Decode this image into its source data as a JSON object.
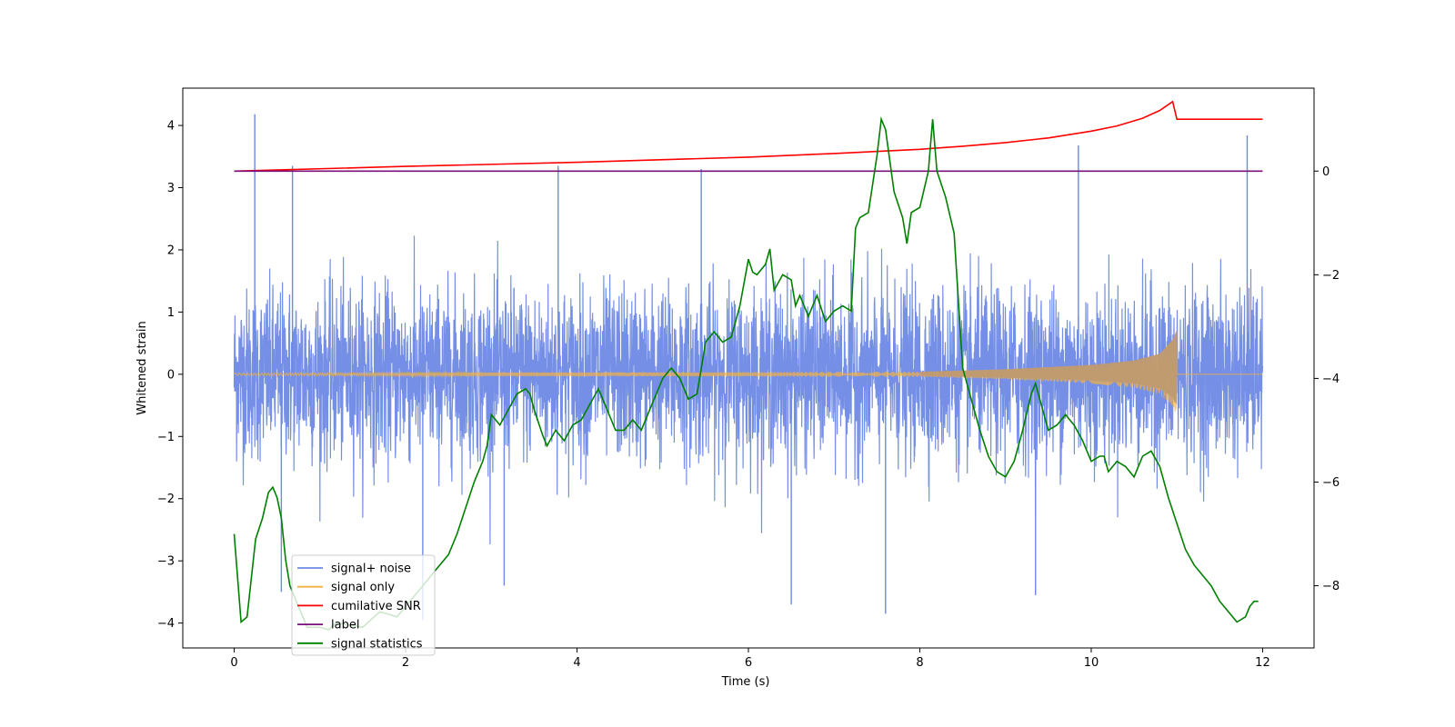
{
  "chart_data": {
    "type": "line",
    "title": "",
    "xlabel": "Time (s)",
    "ylabel": "Whitened strain",
    "y2label": "",
    "xlim": [
      -0.6,
      12.6
    ],
    "ylim": [
      -4.4,
      4.6
    ],
    "y2lim": [
      -9.2,
      1.6
    ],
    "xticks": [
      0,
      2,
      4,
      6,
      8,
      10,
      12
    ],
    "yticks": [
      -4,
      -3,
      -2,
      -1,
      0,
      1,
      2,
      3,
      4
    ],
    "y2ticks": [
      -8,
      -6,
      -4,
      -2,
      0
    ],
    "grid": false,
    "legend_position": "lower-left",
    "series": [
      {
        "name": "signal+ noise",
        "axis": "left",
        "color": "#6d89e4",
        "style": "noise",
        "x_range": [
          0,
          12
        ],
        "envelope_typical": [
          -1.6,
          1.6
        ],
        "spikes": [
          {
            "x": 0.24,
            "y": 4.18
          },
          {
            "x": 0.68,
            "y": 3.35
          },
          {
            "x": 3.78,
            "y": 3.35
          },
          {
            "x": 5.45,
            "y": 3.3
          },
          {
            "x": 9.85,
            "y": 3.68
          },
          {
            "x": 11.82,
            "y": 3.84
          },
          {
            "x": 6.5,
            "y": -3.7
          },
          {
            "x": 7.6,
            "y": -3.85
          },
          {
            "x": 9.35,
            "y": -3.55
          },
          {
            "x": 2.2,
            "y": -3.95
          },
          {
            "x": 0.55,
            "y": -3.5
          },
          {
            "x": 3.15,
            "y": -3.4
          }
        ]
      },
      {
        "name": "signal only",
        "axis": "left",
        "color": "#f5b041",
        "style": "chirp",
        "x": [
          0,
          8,
          9,
          10,
          10.5,
          10.8,
          10.95,
          11.0
        ],
        "amplitude": [
          0.02,
          0.04,
          0.08,
          0.15,
          0.22,
          0.33,
          0.55,
          0.72
        ]
      },
      {
        "name": "cumilative SNR",
        "axis": "right",
        "color": "#ff0000",
        "x": [
          0,
          2,
          4,
          6,
          7,
          8,
          8.5,
          9,
          9.5,
          10,
          10.3,
          10.6,
          10.8,
          10.95,
          11.0,
          12.0
        ],
        "y": [
          0.0,
          0.09,
          0.17,
          0.27,
          0.34,
          0.42,
          0.48,
          0.55,
          0.64,
          0.77,
          0.87,
          1.02,
          1.17,
          1.34,
          1.0,
          1.0
        ]
      },
      {
        "name": "label",
        "axis": "right",
        "color": "#7b0f7b",
        "x": [
          0,
          12
        ],
        "y": [
          0,
          0
        ]
      },
      {
        "name": "signal statistics",
        "axis": "right",
        "color": "#008000",
        "x": [
          0,
          0.08,
          0.15,
          0.25,
          0.33,
          0.4,
          0.45,
          0.5,
          0.55,
          0.6,
          0.65,
          0.75,
          0.85,
          1.0,
          1.1,
          1.2,
          1.3,
          1.5,
          1.7,
          1.9,
          2.0,
          2.1,
          2.2,
          2.35,
          2.5,
          2.6,
          2.7,
          2.8,
          2.9,
          2.95,
          3.0,
          3.1,
          3.2,
          3.3,
          3.4,
          3.45,
          3.5,
          3.6,
          3.65,
          3.75,
          3.85,
          3.95,
          4.05,
          4.15,
          4.25,
          4.3,
          4.4,
          4.45,
          4.55,
          4.65,
          4.75,
          4.85,
          5.0,
          5.1,
          5.2,
          5.3,
          5.4,
          5.5,
          5.6,
          5.7,
          5.8,
          5.9,
          6.0,
          6.05,
          6.1,
          6.2,
          6.25,
          6.3,
          6.4,
          6.5,
          6.55,
          6.6,
          6.7,
          6.8,
          6.9,
          7.0,
          7.1,
          7.2,
          7.25,
          7.3,
          7.4,
          7.5,
          7.55,
          7.6,
          7.7,
          7.8,
          7.85,
          7.9,
          8.0,
          8.1,
          8.15,
          8.2,
          8.3,
          8.4,
          8.5,
          8.6,
          8.7,
          8.8,
          8.9,
          9.0,
          9.1,
          9.2,
          9.3,
          9.35,
          9.4,
          9.5,
          9.6,
          9.7,
          9.8,
          9.9,
          10.0,
          10.1,
          10.15,
          10.2,
          10.3,
          10.4,
          10.5,
          10.6,
          10.7,
          10.8,
          10.9,
          11.0,
          11.1,
          11.2,
          11.3,
          11.4,
          11.5,
          11.6,
          11.7,
          11.8,
          11.85,
          11.9,
          11.95
        ],
        "y": [
          -7.0,
          -8.7,
          -8.6,
          -7.1,
          -6.7,
          -6.2,
          -6.1,
          -6.3,
          -6.7,
          -7.5,
          -8.0,
          -8.4,
          -8.8,
          -8.8,
          -8.85,
          -8.7,
          -8.75,
          -8.8,
          -8.5,
          -8.6,
          -8.4,
          -8.2,
          -8.0,
          -7.7,
          -7.4,
          -7.0,
          -6.5,
          -6.0,
          -5.6,
          -5.3,
          -4.7,
          -4.9,
          -4.6,
          -4.3,
          -4.2,
          -4.3,
          -4.6,
          -5.1,
          -5.3,
          -5.0,
          -5.2,
          -4.9,
          -4.8,
          -4.5,
          -4.2,
          -4.4,
          -4.8,
          -5.0,
          -5.0,
          -4.8,
          -5.0,
          -4.6,
          -4.0,
          -3.8,
          -4.0,
          -4.4,
          -4.3,
          -3.3,
          -3.1,
          -3.3,
          -3.2,
          -2.6,
          -1.7,
          -1.95,
          -2.0,
          -1.8,
          -1.5,
          -2.3,
          -2.0,
          -2.1,
          -2.6,
          -2.4,
          -2.8,
          -2.4,
          -2.9,
          -2.7,
          -2.6,
          -2.7,
          -1.1,
          -0.9,
          -0.8,
          0.3,
          1.0,
          0.8,
          -0.4,
          -0.9,
          -1.4,
          -0.8,
          -0.7,
          0.0,
          1.0,
          0.0,
          -0.5,
          -1.2,
          -3.8,
          -4.4,
          -5.0,
          -5.5,
          -5.8,
          -5.9,
          -5.6,
          -5.0,
          -4.3,
          -4.1,
          -4.4,
          -5.0,
          -4.9,
          -4.7,
          -4.9,
          -5.2,
          -5.6,
          -5.5,
          -5.5,
          -5.8,
          -5.6,
          -5.7,
          -5.9,
          -5.5,
          -5.4,
          -5.7,
          -6.3,
          -6.8,
          -7.3,
          -7.6,
          -7.8,
          -8.0,
          -8.3,
          -8.5,
          -8.7,
          -8.6,
          -8.4,
          -8.3,
          -8.3
        ]
      }
    ]
  },
  "legend": {
    "items": [
      {
        "label": "signal+ noise",
        "color": "#6d89e4"
      },
      {
        "label": "signal only",
        "color": "#f5b041"
      },
      {
        "label": "cumilative SNR",
        "color": "#ff0000"
      },
      {
        "label": "label",
        "color": "#7b0f7b"
      },
      {
        "label": "signal statistics",
        "color": "#008000"
      }
    ]
  }
}
